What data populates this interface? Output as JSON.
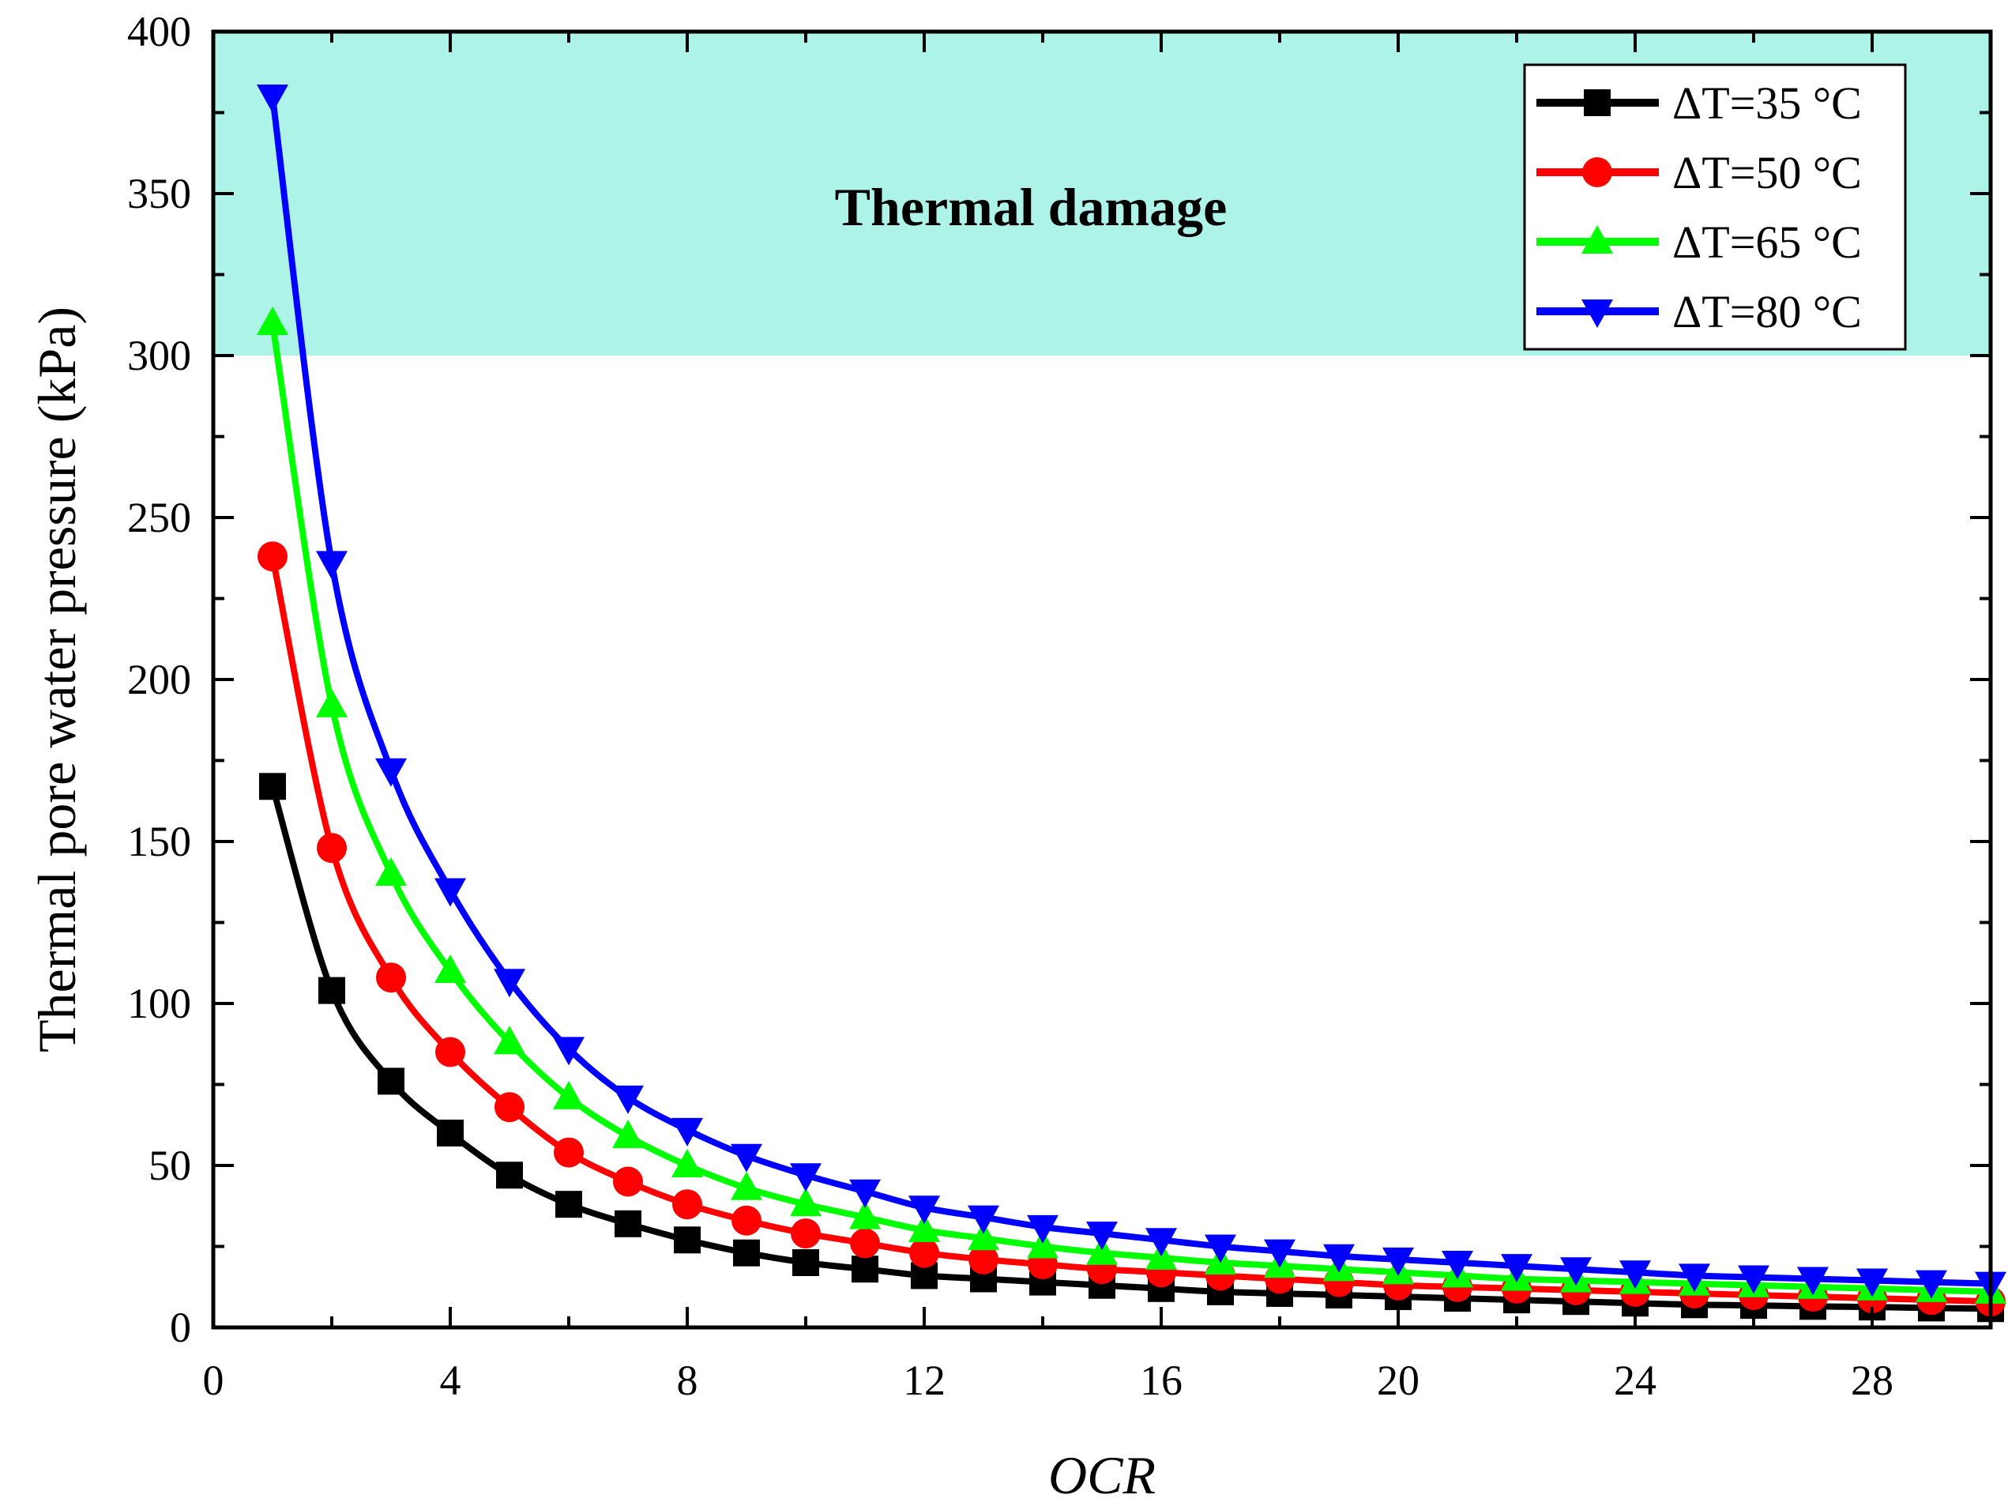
{
  "chart_data": {
    "type": "line",
    "title": "",
    "xlabel": "OCR",
    "ylabel": "Thermal pore water pressure (kPa)",
    "xlim": [
      0,
      30
    ],
    "ylim": [
      0,
      400
    ],
    "xticks": [
      0,
      4,
      8,
      12,
      16,
      20,
      24,
      28
    ],
    "yticks": [
      0,
      50,
      100,
      150,
      200,
      250,
      300,
      350,
      400
    ],
    "x": [
      1,
      2,
      3,
      4,
      5,
      6,
      7,
      8,
      9,
      10,
      11,
      12,
      13,
      14,
      15,
      16,
      17,
      18,
      19,
      20,
      21,
      22,
      23,
      24,
      25,
      26,
      27,
      28,
      29,
      30
    ],
    "legend_position": "top-right",
    "grid": false,
    "region": {
      "label": "Thermal damage",
      "y_from": 300,
      "y_to": 400,
      "color": "#aef3e8"
    },
    "series": [
      {
        "name": "ΔT=35 °C",
        "color": "#000000",
        "marker": "square",
        "values": [
          167,
          104,
          76,
          60,
          47,
          38,
          32,
          27,
          23,
          20,
          18,
          16,
          15,
          14,
          13,
          12,
          11,
          10.5,
          10,
          9.5,
          9,
          8.5,
          8,
          7.5,
          7,
          6.8,
          6.5,
          6.3,
          6,
          5.8
        ]
      },
      {
        "name": "ΔT=50 °C",
        "color": "#ff0000",
        "marker": "circle",
        "values": [
          238,
          148,
          108,
          85,
          68,
          54,
          45,
          38,
          33,
          29,
          26,
          23,
          21,
          19.5,
          18,
          17,
          16,
          15,
          14,
          13,
          12.5,
          12,
          11.5,
          11,
          10.5,
          10,
          9.5,
          9,
          8.5,
          8
        ]
      },
      {
        "name": "ΔT=65 °C",
        "color": "#00ff00",
        "marker": "triangle-up",
        "values": [
          310,
          192,
          140,
          110,
          88,
          71,
          59,
          50,
          43,
          38,
          34,
          30,
          27.5,
          25,
          23,
          21.5,
          20,
          19,
          18,
          17,
          16,
          15,
          14.5,
          14,
          13.5,
          13,
          12.5,
          12,
          11.5,
          11
        ]
      },
      {
        "name": "ΔT=80 °C",
        "color": "#0000ff",
        "marker": "triangle-down",
        "values": [
          380,
          236,
          172,
          135,
          107,
          86,
          71,
          61,
          53,
          47,
          42,
          37,
          34,
          31,
          29,
          27,
          25,
          23.5,
          22,
          21,
          20,
          19,
          18,
          17,
          16,
          15.5,
          15,
          14.5,
          14,
          13.5
        ]
      }
    ]
  }
}
